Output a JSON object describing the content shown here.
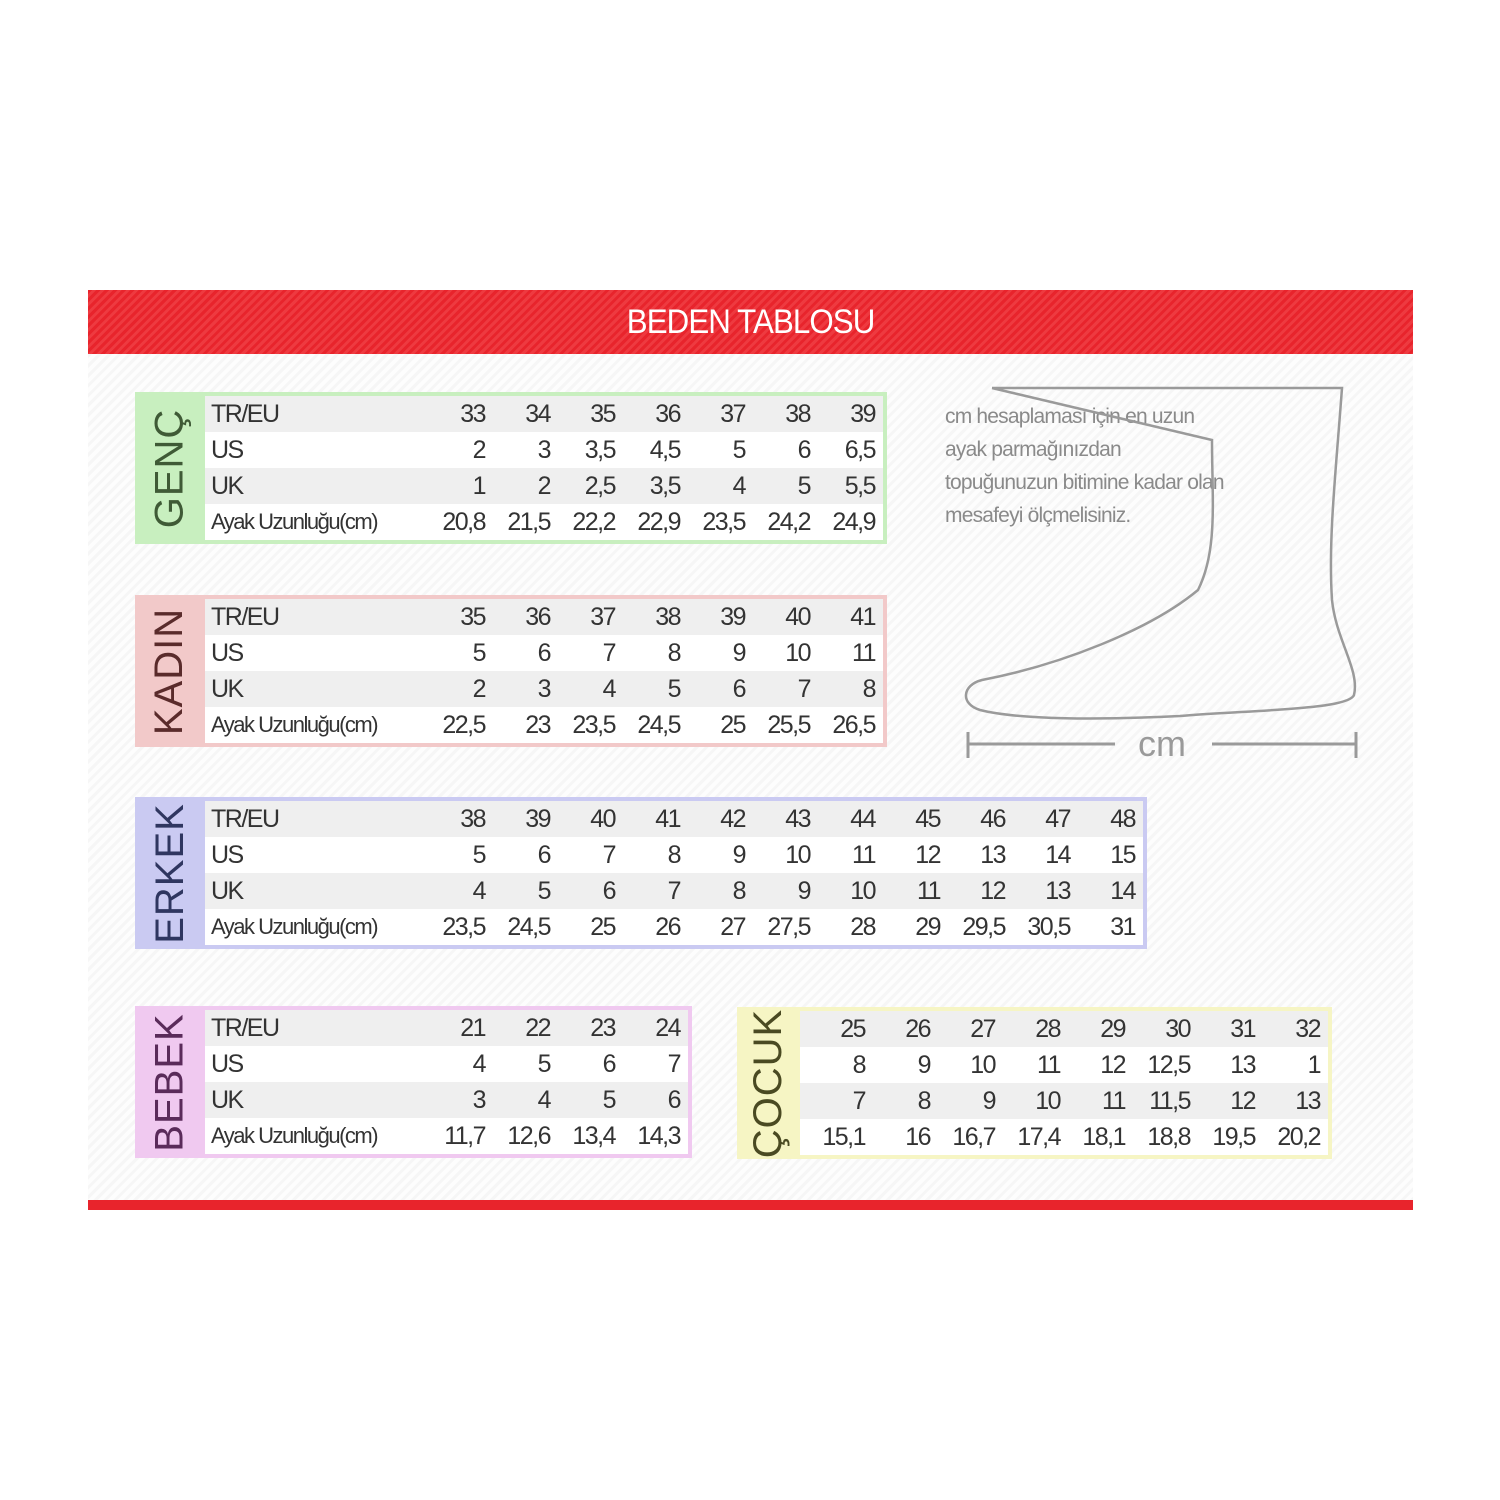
{
  "title": "BEDEN TABLOSU",
  "note": "cm hesaplaması için en uzun ayak parmağınızdan topuğunuzun bitimine kadar olan mesafeyi ölçmelisiniz.",
  "measure_label": "cm",
  "row_labels": [
    "TR/EU",
    "US",
    "UK",
    "Ayak Uzunluğu(cm)"
  ],
  "colors": {
    "header": "#e8242c"
  },
  "tables": [
    {
      "name": "GENÇ",
      "border": "#c8efbf",
      "text_color": "#3f5a36",
      "rows": [
        [
          "33",
          "34",
          "35",
          "36",
          "37",
          "38",
          "39"
        ],
        [
          "2",
          "3",
          "3,5",
          "4,5",
          "5",
          "6",
          "6,5"
        ],
        [
          "1",
          "2",
          "2,5",
          "3,5",
          "4",
          "5",
          "5,5"
        ],
        [
          "20,8",
          "21,5",
          "22,2",
          "22,9",
          "23,5",
          "24,2",
          "24,9"
        ]
      ]
    },
    {
      "name": "KADIN",
      "border": "#f2c9c9",
      "text_color": "#5a2b2b",
      "rows": [
        [
          "35",
          "36",
          "37",
          "38",
          "39",
          "40",
          "41"
        ],
        [
          "5",
          "6",
          "7",
          "8",
          "9",
          "10",
          "11"
        ],
        [
          "2",
          "3",
          "4",
          "5",
          "6",
          "7",
          "8"
        ],
        [
          "22,5",
          "23",
          "23,5",
          "24,5",
          "25",
          "25,5",
          "26,5"
        ]
      ]
    },
    {
      "name": "ERKEK",
      "border": "#cacaf2",
      "text_color": "#2f3660",
      "rows": [
        [
          "38",
          "39",
          "40",
          "41",
          "42",
          "43",
          "44",
          "45",
          "46",
          "47",
          "48"
        ],
        [
          "5",
          "6",
          "7",
          "8",
          "9",
          "10",
          "11",
          "12",
          "13",
          "14",
          "15"
        ],
        [
          "4",
          "5",
          "6",
          "7",
          "8",
          "9",
          "10",
          "11",
          "12",
          "13",
          "14"
        ],
        [
          "23,5",
          "24,5",
          "25",
          "26",
          "27",
          "27,5",
          "28",
          "29",
          "29,5",
          "30,5",
          "31"
        ]
      ]
    },
    {
      "name": "BEBEK",
      "border": "#f0c9f0",
      "text_color": "#5a2b5a",
      "rows": [
        [
          "21",
          "22",
          "23",
          "24"
        ],
        [
          "4",
          "5",
          "6",
          "7"
        ],
        [
          "3",
          "4",
          "5",
          "6"
        ],
        [
          "11,7",
          "12,6",
          "13,4",
          "14,3"
        ]
      ]
    },
    {
      "name": "ÇOCUK",
      "border": "#f6f5c4",
      "text_color": "#4a4a22",
      "no_row_labels": true,
      "rows": [
        [
          "25",
          "26",
          "27",
          "28",
          "29",
          "30",
          "31",
          "32"
        ],
        [
          "8",
          "9",
          "10",
          "11",
          "12",
          "12,5",
          "13",
          "1"
        ],
        [
          "7",
          "8",
          "9",
          "10",
          "11",
          "11,5",
          "12",
          "13"
        ],
        [
          "15,1",
          "16",
          "16,7",
          "17,4",
          "18,1",
          "18,8",
          "19,5",
          "20,2"
        ]
      ]
    }
  ]
}
